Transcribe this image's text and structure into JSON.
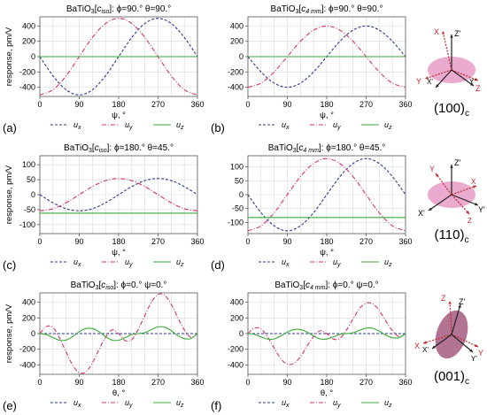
{
  "colors": {
    "ux": "#2b3990",
    "uy": "#d6336c",
    "uz": "#3aaa35",
    "grid": "#d9d9d9",
    "axes": "#555555",
    "ellipse": "#e89cc6",
    "ellipse_dark": "#a65b80"
  },
  "chart_data": [
    {
      "id": "a",
      "type": "line",
      "panel_label": "(a)",
      "title_parts": {
        "material": "BaTiO",
        "sub3": "3",
        "phase": "c",
        "phase_sub": "iso",
        "angles": ": ϕ=90.° θ=90.°"
      },
      "xlabel": "ψ, °",
      "ylabel": "response, pm/V",
      "xlim": [
        0,
        360
      ],
      "ylim": [
        -520,
        520
      ],
      "xticks": [
        0,
        90,
        180,
        270,
        360
      ],
      "yticks": [
        -400,
        -200,
        0,
        200,
        400
      ],
      "grid": true,
      "legend_position": "bottom",
      "series": [
        {
          "name": "u",
          "sub": "x",
          "style": "dash",
          "x": [
            0,
            30,
            60,
            90,
            120,
            150,
            180,
            210,
            240,
            270,
            300,
            330,
            360
          ],
          "values": [
            0,
            -250,
            -433,
            -500,
            -433,
            -250,
            0,
            250,
            433,
            500,
            433,
            250,
            0
          ]
        },
        {
          "name": "u",
          "sub": "y",
          "style": "dashdot",
          "x": [
            0,
            30,
            60,
            90,
            120,
            150,
            180,
            210,
            240,
            270,
            300,
            330,
            360
          ],
          "values": [
            -500,
            -433,
            -250,
            0,
            250,
            433,
            500,
            433,
            250,
            0,
            -250,
            -433,
            -500
          ]
        },
        {
          "name": "u",
          "sub": "z",
          "style": "solid",
          "x": [
            0,
            360
          ],
          "values": [
            0,
            0
          ]
        }
      ]
    },
    {
      "id": "b",
      "type": "line",
      "panel_label": "(b)",
      "title_parts": {
        "material": "BaTiO",
        "sub3": "3",
        "phase": "c",
        "phase_sub": "4 mm",
        "angles": ": ϕ=90.° θ=90.°"
      },
      "xlabel": "ψ, °",
      "ylabel": "",
      "xlim": [
        0,
        360
      ],
      "ylim": [
        -520,
        520
      ],
      "xticks": [
        0,
        90,
        180,
        270,
        360
      ],
      "yticks": [
        -400,
        -200,
        0,
        200,
        400
      ],
      "grid": true,
      "legend_position": "bottom",
      "series": [
        {
          "name": "u",
          "sub": "x",
          "style": "dash",
          "x": [
            0,
            30,
            60,
            90,
            120,
            150,
            180,
            210,
            240,
            270,
            300,
            330,
            360
          ],
          "values": [
            0,
            -200,
            -346,
            -400,
            -346,
            -200,
            0,
            200,
            346,
            400,
            346,
            200,
            0
          ]
        },
        {
          "name": "u",
          "sub": "y",
          "style": "dashdot",
          "x": [
            0,
            30,
            60,
            90,
            120,
            150,
            180,
            210,
            240,
            270,
            300,
            330,
            360
          ],
          "values": [
            -400,
            -346,
            -200,
            0,
            200,
            346,
            400,
            346,
            200,
            0,
            -200,
            -346,
            -400
          ]
        },
        {
          "name": "u",
          "sub": "z",
          "style": "solid",
          "x": [
            0,
            360
          ],
          "values": [
            0,
            0
          ]
        }
      ]
    },
    {
      "id": "c",
      "type": "line",
      "panel_label": "(c)",
      "title_parts": {
        "material": "BaTiO",
        "sub3": "3",
        "phase": "c",
        "phase_sub": "iso",
        "angles": ": ϕ=180.° θ=45.°"
      },
      "xlabel": "ψ, °",
      "ylabel": "response, pm/V",
      "xlim": [
        0,
        360
      ],
      "ylim": [
        -130,
        130
      ],
      "xticks": [
        0,
        90,
        180,
        270,
        360
      ],
      "yticks": [
        -100,
        -50,
        0,
        50,
        100
      ],
      "grid": true,
      "legend_position": "bottom",
      "series": [
        {
          "name": "u",
          "sub": "x",
          "style": "dash",
          "x": [
            0,
            30,
            60,
            90,
            120,
            150,
            180,
            210,
            240,
            270,
            300,
            330,
            360
          ],
          "values": [
            0,
            -27,
            -47,
            -54,
            -47,
            -27,
            0,
            27,
            47,
            54,
            47,
            27,
            0
          ]
        },
        {
          "name": "u",
          "sub": "y",
          "style": "dashdot",
          "x": [
            0,
            30,
            60,
            90,
            120,
            150,
            180,
            210,
            240,
            270,
            300,
            330,
            360
          ],
          "values": [
            -54,
            -47,
            -27,
            0,
            27,
            47,
            54,
            47,
            27,
            0,
            -27,
            -47,
            -54
          ]
        },
        {
          "name": "u",
          "sub": "z",
          "style": "solid",
          "x": [
            0,
            360
          ],
          "values": [
            -62,
            -62
          ]
        }
      ]
    },
    {
      "id": "d",
      "type": "line",
      "panel_label": "(d)",
      "title_parts": {
        "material": "BaTiO",
        "sub3": "3",
        "phase": "c",
        "phase_sub": "4 mm",
        "angles": ": ϕ=180.° θ=45.°"
      },
      "xlabel": "ψ, °",
      "ylabel": "",
      "xlim": [
        0,
        360
      ],
      "ylim": [
        -140,
        140
      ],
      "xticks": [
        0,
        90,
        180,
        270,
        360
      ],
      "yticks": [
        -100,
        -50,
        0,
        50,
        100
      ],
      "grid": true,
      "legend_position": "bottom",
      "series": [
        {
          "name": "u",
          "sub": "x",
          "style": "dash",
          "x": [
            0,
            30,
            60,
            90,
            120,
            150,
            180,
            210,
            240,
            270,
            300,
            330,
            360
          ],
          "values": [
            0,
            -65,
            -112,
            -130,
            -112,
            -65,
            0,
            65,
            112,
            130,
            112,
            65,
            0
          ]
        },
        {
          "name": "u",
          "sub": "y",
          "style": "dashdot",
          "x": [
            0,
            30,
            60,
            90,
            120,
            150,
            180,
            210,
            240,
            270,
            300,
            330,
            360
          ],
          "values": [
            -130,
            -112,
            -65,
            0,
            65,
            112,
            130,
            112,
            65,
            0,
            -65,
            -112,
            -130
          ]
        },
        {
          "name": "u",
          "sub": "z",
          "style": "solid",
          "x": [
            0,
            360
          ],
          "values": [
            -82,
            -82
          ]
        }
      ]
    },
    {
      "id": "e",
      "type": "line",
      "panel_label": "(e)",
      "title_parts": {
        "material": "BaTiO",
        "sub3": "3",
        "phase": "c",
        "phase_sub": "iso",
        "angles": ": ϕ=0.° ψ=0.°"
      },
      "xlabel": "θ, °",
      "ylabel": "response, pm/V",
      "xlim": [
        0,
        360
      ],
      "ylim": [
        -520,
        520
      ],
      "xticks": [
        0,
        90,
        180,
        270,
        360
      ],
      "yticks": [
        -400,
        -200,
        0,
        200,
        400
      ],
      "grid": true,
      "legend_position": "bottom",
      "series": [
        {
          "name": "u",
          "sub": "x",
          "style": "dash",
          "x": [
            0,
            360
          ],
          "values": [
            0,
            0
          ]
        },
        {
          "name": "u",
          "sub": "y",
          "style": "dashdot",
          "x": [
            0,
            15,
            30,
            45,
            60,
            75,
            90,
            105,
            120,
            135,
            150,
            165,
            180,
            195,
            210,
            225,
            240,
            255,
            270,
            285,
            300,
            315,
            330,
            345,
            360
          ],
          "values": [
            0,
            90,
            78,
            -57,
            -235,
            -404,
            -500,
            -490,
            -376,
            -205,
            -48,
            47,
            0,
            -91,
            -78,
            57,
            235,
            404,
            500,
            490,
            376,
            205,
            48,
            -47,
            0
          ]
        },
        {
          "name": "u",
          "sub": "z",
          "style": "solid",
          "x": [
            0,
            15,
            30,
            45,
            60,
            75,
            90,
            105,
            120,
            135,
            150,
            165,
            180,
            195,
            210,
            225,
            240,
            255,
            270,
            285,
            300,
            315,
            330,
            345,
            360
          ],
          "values": [
            0,
            -12,
            -51,
            -85,
            -83,
            -38,
            25,
            64,
            64,
            25,
            -38,
            -83,
            -85,
            -51,
            -12,
            0,
            12,
            51,
            85,
            83,
            38,
            -25,
            -64,
            -64,
            0
          ]
        }
      ]
    },
    {
      "id": "f",
      "type": "line",
      "panel_label": "(f)",
      "title_parts": {
        "material": "BaTiO",
        "sub3": "3",
        "phase": "c",
        "phase_sub": "4 mm",
        "angles": ": ϕ=0.° ψ=0.°"
      },
      "xlabel": "θ, °",
      "ylabel": "",
      "xlim": [
        0,
        360
      ],
      "ylim": [
        -520,
        520
      ],
      "xticks": [
        0,
        90,
        180,
        270,
        360
      ],
      "yticks": [
        -400,
        -200,
        0,
        200,
        400
      ],
      "grid": true,
      "legend_position": "bottom",
      "series": [
        {
          "name": "u",
          "sub": "x",
          "style": "dash",
          "x": [
            0,
            360
          ],
          "values": [
            0,
            0
          ]
        },
        {
          "name": "u",
          "sub": "y",
          "style": "dashdot",
          "x": [
            0,
            15,
            30,
            45,
            60,
            75,
            90,
            105,
            120,
            135,
            150,
            165,
            180,
            195,
            210,
            225,
            240,
            255,
            270,
            285,
            300,
            315,
            330,
            345,
            360
          ],
          "values": [
            0,
            70,
            60,
            -45,
            -185,
            -320,
            -390,
            -380,
            -295,
            -160,
            -38,
            37,
            0,
            -70,
            -60,
            45,
            185,
            320,
            390,
            380,
            295,
            160,
            38,
            -37,
            0
          ]
        },
        {
          "name": "u",
          "sub": "z",
          "style": "solid",
          "x": [
            0,
            15,
            30,
            45,
            60,
            75,
            90,
            105,
            120,
            135,
            150,
            165,
            180,
            195,
            210,
            225,
            240,
            255,
            270,
            285,
            300,
            315,
            330,
            345,
            360
          ],
          "values": [
            0,
            -10,
            -42,
            -70,
            -68,
            -31,
            20,
            52,
            52,
            20,
            -31,
            -68,
            -70,
            -42,
            -10,
            0,
            10,
            42,
            70,
            68,
            31,
            -20,
            -52,
            -52,
            0
          ]
        }
      ]
    }
  ],
  "insets": [
    {
      "id": "100",
      "miller": "(100)",
      "miller_sub": "c",
      "axis_labels": [
        "Z'",
        "X",
        "Y",
        "Z",
        "X'",
        "Y'",
        "Z"
      ]
    },
    {
      "id": "110",
      "miller": "(110)",
      "miller_sub": "c",
      "axis_labels": [
        "Z'",
        "Y",
        "X",
        "Y'",
        "X'",
        "Z"
      ]
    },
    {
      "id": "001",
      "miller": "(001)",
      "miller_sub": "c",
      "axis_labels": [
        "Z",
        "Z'",
        "X",
        "X'",
        "Y",
        "Y'"
      ]
    }
  ]
}
